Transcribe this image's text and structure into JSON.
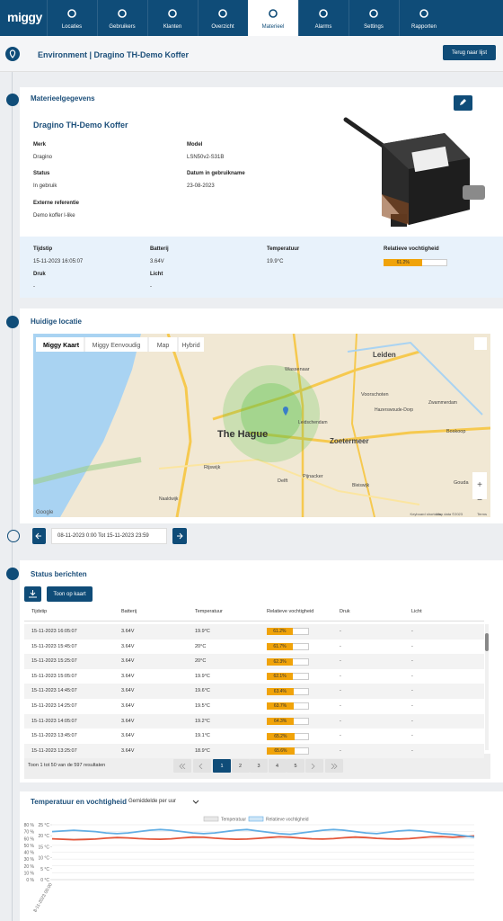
{
  "nav": {
    "logo": "miggy",
    "items": [
      "Locaties",
      "Gebruikers",
      "Klanten",
      "Overzicht",
      "Materieel",
      "Alarms",
      "Settings",
      "Rapporten"
    ],
    "active": 4
  },
  "header": {
    "title": "Environment | Dragino TH-Demo Koffer",
    "back": "Terug naar lijst"
  },
  "device": {
    "section": "Materieelgegevens",
    "name": "Dragino TH-Demo Koffer",
    "fields": [
      {
        "label": "Merk",
        "value": "Dragino"
      },
      {
        "label": "Model",
        "value": "LSN50v2-S31B"
      },
      {
        "label": "Status",
        "value": "In gebruik"
      },
      {
        "label": "Datum in gebruikname",
        "value": "23-08-2023"
      },
      {
        "label": "Externe referentie",
        "value": "Demo koffer l-like"
      }
    ]
  },
  "measurement": {
    "fields": [
      {
        "label": "Tijdstip",
        "value": "15-11-2023 16:05:07"
      },
      {
        "label": "Batterij",
        "value": "3.64V"
      },
      {
        "label": "Temperatuur",
        "value": "19.9°C"
      },
      {
        "label": "Druk",
        "value": "-"
      },
      {
        "label": "Licht",
        "value": "-"
      }
    ],
    "humidity": {
      "label": "Relatieve vochtigheid",
      "value": 61.2,
      "value_label": "61.2%"
    }
  },
  "location": {
    "section": "Huidige locatie",
    "tabs": [
      "Miggy Kaart",
      "Miggy Eenvoudig",
      "Map",
      "Hybrid"
    ],
    "places": [
      "Leiden",
      "Wassenaar",
      "Voorschoten",
      "The Hague",
      "Leidschendam",
      "Zoetermeer",
      "Rijswijk",
      "Delft",
      "Pijnacker",
      "Naaldwijk",
      "Bleiswijk",
      "Boskoop",
      "Gouda",
      "Zwammerdam",
      "Hazerswoude-Dorp"
    ],
    "attribution": [
      "Google",
      "Keyboard shortcuts",
      "Map data ©2023",
      "Terms"
    ]
  },
  "range": "08-11-2023 0:00 Tot 15-11-2023 23:59",
  "messages": {
    "section": "Status berichten",
    "map_button": "Toon op kaart",
    "columns": [
      "Tijdstip",
      "Batterij",
      "Temperatuur",
      "Relatieve vochtigheid",
      "Druk",
      "Licht"
    ],
    "rows": [
      {
        "time": "15-11-2023 16:05:07",
        "battery": "3.64V",
        "temp": "19.9°C",
        "humidity": 61.2,
        "humidity_label": "61.2%",
        "pressure": "-",
        "light": "-"
      },
      {
        "time": "15-11-2023 15:45:07",
        "battery": "3.64V",
        "temp": "20°C",
        "humidity": 61.7,
        "humidity_label": "61.7%",
        "pressure": "-",
        "light": "-"
      },
      {
        "time": "15-11-2023 15:25:07",
        "battery": "3.64V",
        "temp": "20°C",
        "humidity": 62.3,
        "humidity_label": "62.3%",
        "pressure": "-",
        "light": "-"
      },
      {
        "time": "15-11-2023 15:05:07",
        "battery": "3.64V",
        "temp": "19.9°C",
        "humidity": 62.1,
        "humidity_label": "62.1%",
        "pressure": "-",
        "light": "-"
      },
      {
        "time": "15-11-2023 14:45:07",
        "battery": "3.64V",
        "temp": "19.6°C",
        "humidity": 63.4,
        "humidity_label": "63.4%",
        "pressure": "-",
        "light": "-"
      },
      {
        "time": "15-11-2023 14:25:07",
        "battery": "3.64V",
        "temp": "19.5°C",
        "humidity": 63.7,
        "humidity_label": "63.7%",
        "pressure": "-",
        "light": "-"
      },
      {
        "time": "15-11-2023 14:05:07",
        "battery": "3.64V",
        "temp": "19.2°C",
        "humidity": 64.3,
        "humidity_label": "64.3%",
        "pressure": "-",
        "light": "-"
      },
      {
        "time": "15-11-2023 13:45:07",
        "battery": "3.64V",
        "temp": "19.1°C",
        "humidity": 65.2,
        "humidity_label": "65.2%",
        "pressure": "-",
        "light": "-"
      },
      {
        "time": "15-11-2023 13:25:07",
        "battery": "3.64V",
        "temp": "18.9°C",
        "humidity": 65.6,
        "humidity_label": "65.6%",
        "pressure": "-",
        "light": "-"
      }
    ],
    "summary": "Toon 1 tot 50 van de 597 resultaten",
    "pages": [
      "1",
      "2",
      "3",
      "4",
      "5"
    ],
    "current_page": 0
  },
  "chart_data": {
    "type": "line",
    "title": "Temperatuur en vochtigheid",
    "aggregation": "Gemiddelde per uur",
    "categories": [
      "8-11-2023 00:00",
      null,
      null,
      null,
      null,
      null,
      null,
      null,
      null,
      null,
      null,
      null,
      null,
      null,
      null,
      null,
      null,
      null,
      null,
      null,
      null,
      null,
      null,
      null,
      null,
      null,
      null,
      null,
      null,
      null,
      null,
      null,
      null,
      null,
      null,
      null,
      null,
      null,
      null,
      null
    ],
    "series": [
      {
        "name": "Temperatuur",
        "color": "#e4563a",
        "axis": "y2",
        "values": [
          18.6,
          18.4,
          18.2,
          18.3,
          18.5,
          18.9,
          19.2,
          19.0,
          18.7,
          18.5,
          18.4,
          18.6,
          19.0,
          19.4,
          19.3,
          18.9,
          18.6,
          18.4,
          18.5,
          18.8,
          19.2,
          19.5,
          19.3,
          18.9,
          18.6,
          18.5,
          18.7,
          19.1,
          19.4,
          19.2,
          18.8,
          18.6,
          18.5,
          18.7,
          19.1,
          19.5,
          19.6,
          19.3,
          19.6,
          19.9
        ]
      },
      {
        "name": "Relatieve vochtigheid",
        "color": "#62aee4",
        "values": [
          70,
          71,
          72,
          71,
          70,
          68,
          67,
          68,
          70,
          72,
          73,
          72,
          70,
          68,
          67,
          68,
          70,
          72,
          73,
          71,
          69,
          67,
          66,
          68,
          70,
          72,
          73,
          72,
          70,
          68,
          67,
          69,
          71,
          72,
          71,
          69,
          67,
          66,
          64,
          62
        ]
      }
    ],
    "ylim": [
      0,
      80
    ],
    "yticks": [
      {
        "value": 0,
        "label": "0 %"
      },
      {
        "value": 10,
        "label": "10 %"
      },
      {
        "value": 20,
        "label": "20 %"
      },
      {
        "value": 30,
        "label": "30 %"
      },
      {
        "value": 40,
        "label": "40 %"
      },
      {
        "value": 50,
        "label": "50 %"
      },
      {
        "value": 60,
        "label": "60 %"
      },
      {
        "value": 70,
        "label": "70 %"
      },
      {
        "value": 80,
        "label": "80 %"
      }
    ],
    "y2lim": [
      0,
      25
    ],
    "y2ticks": [
      {
        "value": 0,
        "label": "0 °C"
      },
      {
        "value": 5,
        "label": "5 °C"
      },
      {
        "value": 10,
        "label": "10 °C"
      },
      {
        "value": 15,
        "label": "15 °C"
      },
      {
        "value": 20,
        "label": "20 °C"
      },
      {
        "value": 25,
        "label": "25 °C"
      }
    ],
    "grid": true
  }
}
